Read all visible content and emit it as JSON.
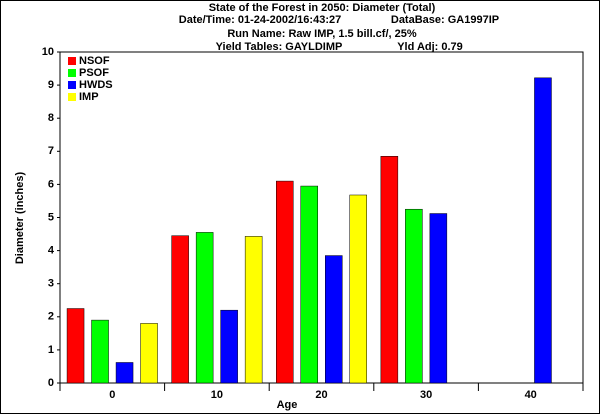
{
  "chart_data": {
    "type": "bar",
    "title": "State of the Forest in 2050: Diameter (Total)",
    "subtitle_lines": [
      "Date/Time: 01-24-2002/16:43:27",
      "DataBase: GA1997IP",
      "Run Name: Raw IMP, 1.5 bill.cf/, 25%",
      "Yield Tables: GAYLDIMP",
      "Yld Adj: 0.79"
    ],
    "x_label": "Age",
    "y_label": "Diameter (inches)",
    "categories": [
      "0",
      "10",
      "20",
      "30",
      "40"
    ],
    "series": [
      {
        "name": "NSOF",
        "color": "#ff0000",
        "values": [
          2.25,
          4.45,
          6.1,
          6.85,
          null
        ]
      },
      {
        "name": "PSOF",
        "color": "#00ff00",
        "values": [
          1.9,
          4.55,
          5.95,
          5.25,
          null
        ]
      },
      {
        "name": "HWDS",
        "color": "#0000ff",
        "values": [
          0.62,
          2.2,
          3.85,
          5.12,
          9.22
        ]
      },
      {
        "name": "IMP",
        "color": "#ffff00",
        "values": [
          1.8,
          4.43,
          5.68,
          null,
          null
        ]
      }
    ],
    "ylim": [
      0,
      10
    ],
    "yticks": [
      0,
      1,
      2,
      3,
      4,
      5,
      6,
      7,
      8,
      9,
      10
    ],
    "legend": "upper-left"
  }
}
